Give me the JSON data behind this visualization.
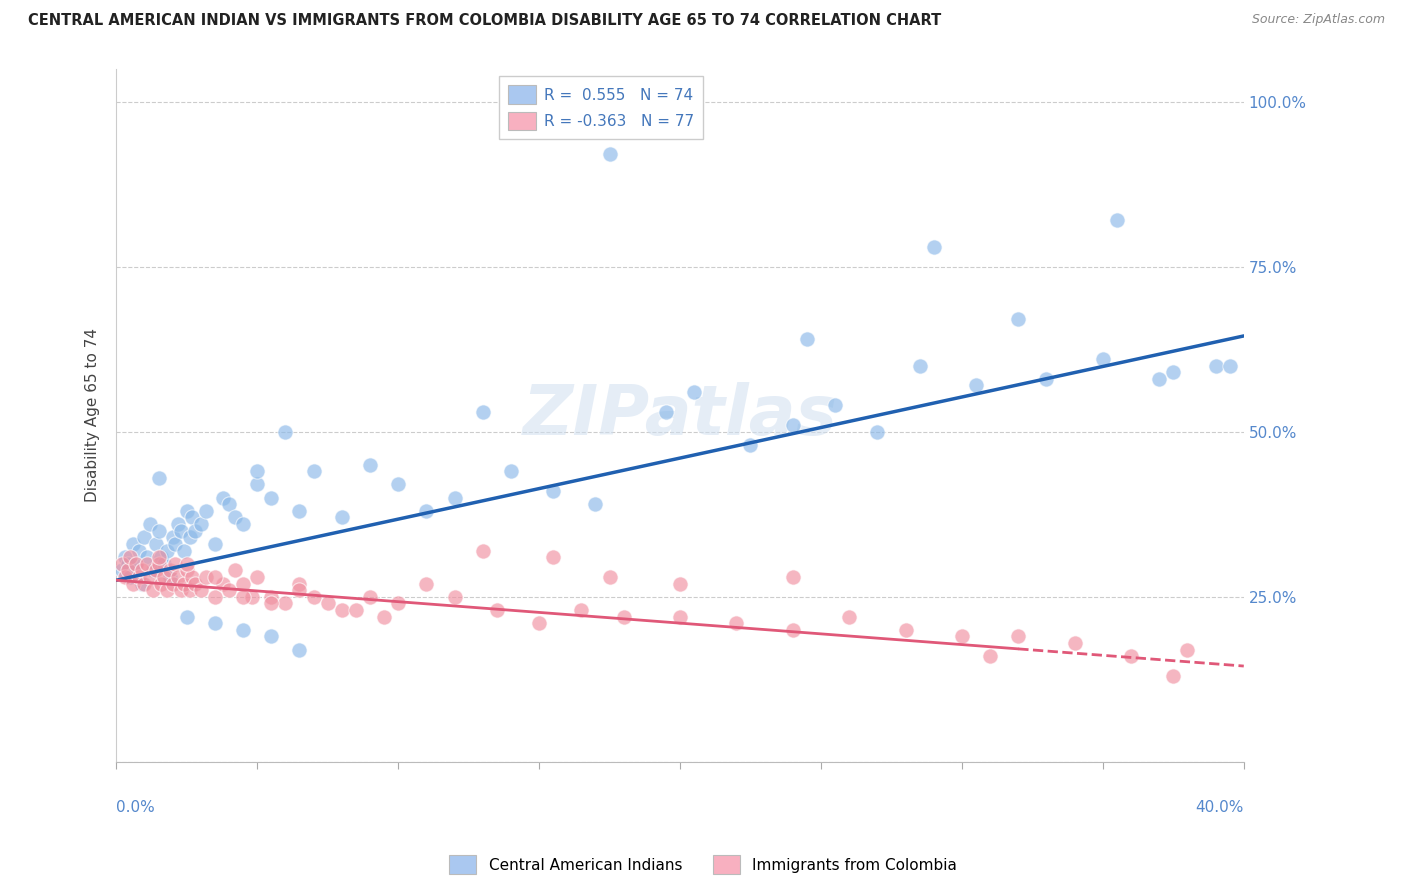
{
  "title": "CENTRAL AMERICAN INDIAN VS IMMIGRANTS FROM COLOMBIA DISABILITY AGE 65 TO 74 CORRELATION CHART",
  "source": "Source: ZipAtlas.com",
  "ylabel": "Disability Age 65 to 74",
  "yticks": [
    0.0,
    0.25,
    0.5,
    0.75,
    1.0
  ],
  "ytick_labels": [
    "",
    "25.0%",
    "50.0%",
    "75.0%",
    "100.0%"
  ],
  "xmin": 0.0,
  "xmax": 0.4,
  "ymin": 0.0,
  "ymax": 1.05,
  "legend1_label": "R =  0.555   N = 74",
  "legend2_label": "R = -0.363   N = 77",
  "legend1_color": "#aac8f0",
  "legend2_color": "#f8b0c0",
  "series1_color": "#8ab8e8",
  "series2_color": "#f090a0",
  "trend1_color": "#2060b0",
  "trend2_color": "#e05878",
  "watermark": "ZIPatlas",
  "trend1_x0": 0.0,
  "trend1_y0": 0.275,
  "trend1_x1": 0.4,
  "trend1_y1": 0.645,
  "trend2_x0": 0.0,
  "trend2_y0": 0.275,
  "trend2_x1": 0.4,
  "trend2_y1": 0.145,
  "trend2_solid_end": 0.32,
  "blue_x": [
    0.002,
    0.003,
    0.004,
    0.005,
    0.006,
    0.007,
    0.008,
    0.009,
    0.01,
    0.011,
    0.012,
    0.013,
    0.014,
    0.015,
    0.016,
    0.017,
    0.018,
    0.019,
    0.02,
    0.021,
    0.022,
    0.023,
    0.024,
    0.025,
    0.026,
    0.027,
    0.028,
    0.03,
    0.032,
    0.035,
    0.038,
    0.04,
    0.042,
    0.045,
    0.05,
    0.055,
    0.06,
    0.065,
    0.07,
    0.08,
    0.09,
    0.1,
    0.11,
    0.12,
    0.14,
    0.155,
    0.17,
    0.195,
    0.205,
    0.225,
    0.24,
    0.255,
    0.27,
    0.285,
    0.305,
    0.33,
    0.35,
    0.375,
    0.39,
    0.05,
    0.13,
    0.175,
    0.245,
    0.29,
    0.32,
    0.355,
    0.37,
    0.395,
    0.015,
    0.025,
    0.035,
    0.045,
    0.055,
    0.065
  ],
  "blue_y": [
    0.29,
    0.31,
    0.3,
    0.28,
    0.33,
    0.3,
    0.32,
    0.27,
    0.34,
    0.31,
    0.36,
    0.29,
    0.33,
    0.35,
    0.31,
    0.3,
    0.32,
    0.28,
    0.34,
    0.33,
    0.36,
    0.35,
    0.32,
    0.38,
    0.34,
    0.37,
    0.35,
    0.36,
    0.38,
    0.33,
    0.4,
    0.39,
    0.37,
    0.36,
    0.42,
    0.4,
    0.5,
    0.38,
    0.44,
    0.37,
    0.45,
    0.42,
    0.38,
    0.4,
    0.44,
    0.41,
    0.39,
    0.53,
    0.56,
    0.48,
    0.51,
    0.54,
    0.5,
    0.6,
    0.57,
    0.58,
    0.61,
    0.59,
    0.6,
    0.44,
    0.53,
    0.92,
    0.64,
    0.78,
    0.67,
    0.82,
    0.58,
    0.6,
    0.43,
    0.22,
    0.21,
    0.2,
    0.19,
    0.17
  ],
  "pink_x": [
    0.002,
    0.003,
    0.004,
    0.005,
    0.006,
    0.007,
    0.008,
    0.009,
    0.01,
    0.011,
    0.012,
    0.013,
    0.014,
    0.015,
    0.016,
    0.017,
    0.018,
    0.019,
    0.02,
    0.021,
    0.022,
    0.023,
    0.024,
    0.025,
    0.026,
    0.027,
    0.028,
    0.03,
    0.032,
    0.035,
    0.038,
    0.04,
    0.042,
    0.045,
    0.048,
    0.05,
    0.055,
    0.06,
    0.065,
    0.07,
    0.08,
    0.09,
    0.1,
    0.11,
    0.12,
    0.135,
    0.15,
    0.165,
    0.18,
    0.2,
    0.22,
    0.24,
    0.26,
    0.28,
    0.3,
    0.32,
    0.34,
    0.36,
    0.015,
    0.025,
    0.035,
    0.045,
    0.055,
    0.065,
    0.075,
    0.085,
    0.095,
    0.13,
    0.155,
    0.175,
    0.2,
    0.24,
    0.31,
    0.375,
    0.38
  ],
  "pink_y": [
    0.3,
    0.28,
    0.29,
    0.31,
    0.27,
    0.3,
    0.28,
    0.29,
    0.27,
    0.3,
    0.28,
    0.26,
    0.29,
    0.3,
    0.27,
    0.28,
    0.26,
    0.29,
    0.27,
    0.3,
    0.28,
    0.26,
    0.27,
    0.29,
    0.26,
    0.28,
    0.27,
    0.26,
    0.28,
    0.25,
    0.27,
    0.26,
    0.29,
    0.27,
    0.25,
    0.28,
    0.25,
    0.24,
    0.27,
    0.25,
    0.23,
    0.25,
    0.24,
    0.27,
    0.25,
    0.23,
    0.21,
    0.23,
    0.22,
    0.22,
    0.21,
    0.2,
    0.22,
    0.2,
    0.19,
    0.19,
    0.18,
    0.16,
    0.31,
    0.3,
    0.28,
    0.25,
    0.24,
    0.26,
    0.24,
    0.23,
    0.22,
    0.32,
    0.31,
    0.28,
    0.27,
    0.28,
    0.16,
    0.13,
    0.17
  ]
}
